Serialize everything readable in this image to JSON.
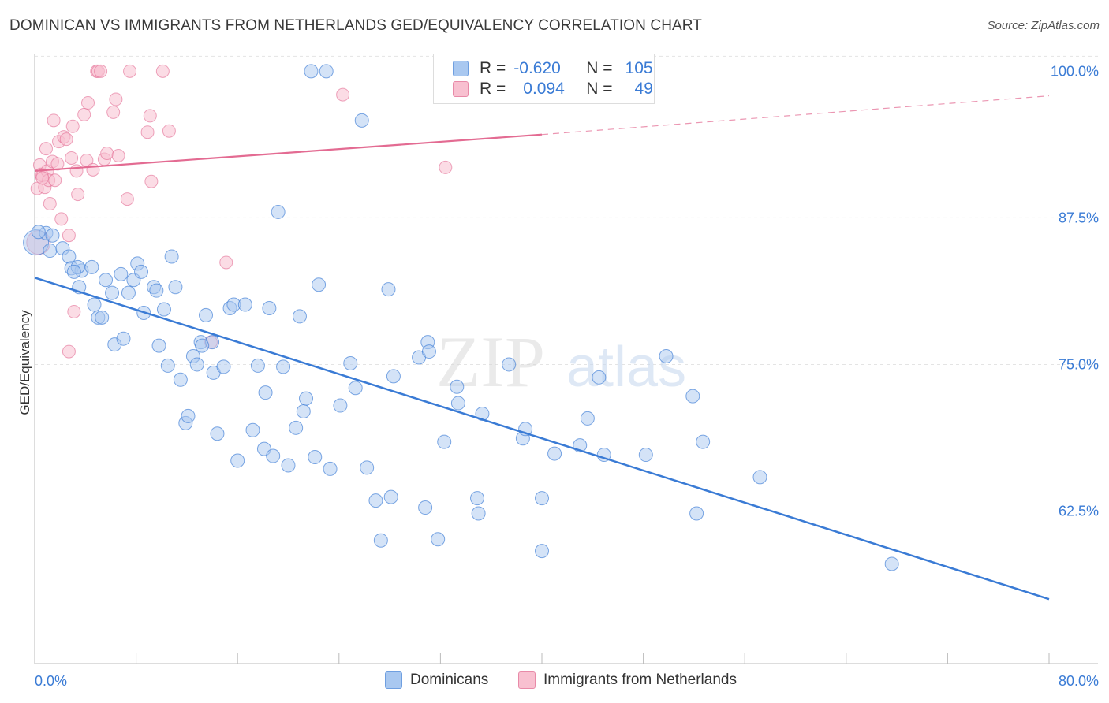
{
  "title": "DOMINICAN VS IMMIGRANTS FROM NETHERLANDS GED/EQUIVALENCY CORRELATION CHART",
  "source": "Source: ZipAtlas.com",
  "legend": {
    "r_label": "R =",
    "n_label": "N =",
    "rows": [
      {
        "r": "-0.620",
        "n": "105"
      },
      {
        "r": "0.094",
        "n": "49"
      }
    ]
  },
  "bottom_legend": [
    "Dominicans",
    "Immigrants from Netherlands"
  ],
  "watermark": {
    "zip": "ZIP",
    "atlas": "atlas"
  },
  "colors": {
    "blue": "#3a7bd5",
    "blue_fill": "#a9c8f0",
    "pink": "#e36b92",
    "pink_fill": "#f8c0d0"
  },
  "chart_data": {
    "type": "scatter",
    "title": "DOMINICAN VS IMMIGRANTS FROM NETHERLANDS GED/EQUIVALENCY CORRELATION CHART",
    "xlabel": "",
    "ylabel": "GED/Equivalency",
    "x_tick_labels": [
      "0.0%",
      "80.0%"
    ],
    "y_tick_labels": [
      "100.0%",
      "87.5%",
      "75.0%",
      "62.5%"
    ],
    "y_ticks": [
      100.0,
      87.5,
      75.0,
      62.5
    ],
    "xlim": [
      0,
      80
    ],
    "ylim": [
      49.5,
      101.5
    ],
    "grid": true,
    "series": [
      {
        "name": "Dominicans",
        "r": -0.62,
        "n": 105,
        "trend": {
          "x0": 0,
          "y0": 82.4,
          "x1": 80,
          "y1": 55.0
        },
        "points": [
          [
            0.1,
            85.4
          ],
          [
            0.9,
            86.2
          ],
          [
            1.2,
            84.7
          ],
          [
            1.4,
            86.0
          ],
          [
            2.2,
            84.9
          ],
          [
            2.7,
            84.2
          ],
          [
            2.9,
            83.2
          ],
          [
            3.7,
            83.0
          ],
          [
            3.4,
            83.3
          ],
          [
            3.5,
            81.6
          ],
          [
            4.5,
            83.3
          ],
          [
            4.7,
            80.1
          ],
          [
            5.0,
            79.0
          ],
          [
            5.3,
            79.0
          ],
          [
            5.6,
            82.2
          ],
          [
            6.1,
            81.1
          ],
          [
            6.3,
            76.7
          ],
          [
            6.8,
            82.7
          ],
          [
            7.0,
            77.2
          ],
          [
            7.4,
            81.1
          ],
          [
            7.8,
            82.2
          ],
          [
            8.1,
            83.6
          ],
          [
            8.4,
            82.9
          ],
          [
            8.6,
            79.4
          ],
          [
            9.4,
            81.6
          ],
          [
            9.6,
            81.3
          ],
          [
            9.8,
            76.6
          ],
          [
            10.2,
            79.7
          ],
          [
            10.5,
            74.9
          ],
          [
            10.8,
            84.2
          ],
          [
            11.1,
            81.6
          ],
          [
            11.5,
            73.7
          ],
          [
            11.9,
            70.0
          ],
          [
            12.1,
            70.6
          ],
          [
            12.5,
            75.7
          ],
          [
            12.8,
            75.0
          ],
          [
            13.1,
            76.9
          ],
          [
            13.5,
            79.2
          ],
          [
            14.0,
            76.9
          ],
          [
            14.1,
            74.3
          ],
          [
            14.4,
            69.1
          ],
          [
            14.9,
            74.8
          ],
          [
            15.4,
            79.8
          ],
          [
            15.7,
            80.1
          ],
          [
            16.0,
            66.8
          ],
          [
            16.6,
            80.1
          ],
          [
            17.2,
            69.4
          ],
          [
            17.6,
            74.9
          ],
          [
            18.1,
            67.8
          ],
          [
            18.2,
            72.6
          ],
          [
            18.5,
            79.8
          ],
          [
            18.8,
            67.2
          ],
          [
            19.2,
            88.0
          ],
          [
            19.6,
            74.8
          ],
          [
            20.0,
            66.4
          ],
          [
            20.6,
            69.6
          ],
          [
            20.9,
            79.1
          ],
          [
            21.2,
            71.0
          ],
          [
            21.4,
            72.1
          ],
          [
            21.8,
            100.0
          ],
          [
            22.1,
            67.1
          ],
          [
            22.4,
            81.8
          ],
          [
            23.0,
            100.0
          ],
          [
            23.3,
            66.1
          ],
          [
            24.1,
            71.5
          ],
          [
            24.9,
            75.1
          ],
          [
            25.3,
            73.0
          ],
          [
            25.8,
            95.8
          ],
          [
            26.2,
            66.2
          ],
          [
            26.9,
            63.4
          ],
          [
            27.3,
            60.0
          ],
          [
            27.9,
            81.4
          ],
          [
            28.1,
            63.7
          ],
          [
            28.3,
            74.0
          ],
          [
            30.3,
            75.6
          ],
          [
            30.8,
            62.8
          ],
          [
            31.0,
            76.9
          ],
          [
            31.1,
            76.1
          ],
          [
            31.8,
            60.1
          ],
          [
            32.3,
            68.4
          ],
          [
            33.3,
            73.1
          ],
          [
            33.4,
            71.7
          ],
          [
            34.9,
            63.6
          ],
          [
            35.0,
            62.3
          ],
          [
            35.3,
            70.8
          ],
          [
            37.4,
            75.0
          ],
          [
            38.5,
            68.7
          ],
          [
            38.7,
            69.5
          ],
          [
            40.0,
            63.6
          ],
          [
            40.0,
            59.1
          ],
          [
            41.0,
            67.4
          ],
          [
            43.0,
            68.1
          ],
          [
            43.6,
            70.4
          ],
          [
            44.5,
            73.9
          ],
          [
            44.9,
            67.3
          ],
          [
            48.2,
            67.3
          ],
          [
            49.8,
            75.7
          ],
          [
            51.9,
            72.3
          ],
          [
            52.2,
            62.3
          ],
          [
            52.7,
            68.4
          ],
          [
            57.2,
            65.4
          ],
          [
            67.6,
            58.0
          ],
          [
            0.3,
            86.3
          ],
          [
            3.1,
            82.9
          ],
          [
            13.2,
            76.6
          ]
        ]
      },
      {
        "name": "Immigrants from Netherlands",
        "r": 0.094,
        "n": 49,
        "trend": {
          "x0": 0,
          "y0": 91.5,
          "x1": 40,
          "y1": 94.6,
          "x_dash_end": 80,
          "y_dash_end": 97.9
        },
        "points": [
          [
            0.2,
            90.0
          ],
          [
            0.4,
            92.0
          ],
          [
            0.5,
            91.2
          ],
          [
            0.6,
            91.1
          ],
          [
            0.8,
            90.1
          ],
          [
            0.9,
            93.4
          ],
          [
            1.0,
            91.5
          ],
          [
            1.1,
            90.7
          ],
          [
            1.2,
            88.7
          ],
          [
            1.4,
            92.3
          ],
          [
            1.5,
            95.8
          ],
          [
            1.6,
            90.7
          ],
          [
            1.8,
            92.1
          ],
          [
            1.9,
            94.0
          ],
          [
            2.1,
            87.4
          ],
          [
            2.3,
            94.4
          ],
          [
            2.5,
            94.2
          ],
          [
            2.7,
            86.0
          ],
          [
            2.9,
            92.6
          ],
          [
            3.0,
            95.3
          ],
          [
            3.1,
            79.5
          ],
          [
            3.3,
            91.5
          ],
          [
            3.4,
            89.5
          ],
          [
            3.9,
            96.3
          ],
          [
            4.1,
            92.4
          ],
          [
            4.2,
            97.3
          ],
          [
            4.6,
            91.6
          ],
          [
            4.9,
            100.0
          ],
          [
            5.0,
            100.0
          ],
          [
            5.2,
            100.0
          ],
          [
            5.5,
            92.5
          ],
          [
            5.7,
            93.0
          ],
          [
            6.2,
            96.5
          ],
          [
            6.4,
            97.6
          ],
          [
            6.6,
            92.8
          ],
          [
            7.3,
            89.1
          ],
          [
            7.5,
            100.0
          ],
          [
            8.9,
            94.8
          ],
          [
            9.1,
            96.2
          ],
          [
            9.2,
            90.6
          ],
          [
            10.1,
            100.0
          ],
          [
            10.6,
            94.9
          ],
          [
            13.9,
            76.9
          ],
          [
            15.1,
            83.7
          ],
          [
            24.3,
            98.0
          ],
          [
            32.4,
            91.8
          ],
          [
            2.7,
            76.1
          ],
          [
            0.3,
            85.4
          ],
          [
            0.6,
            90.9
          ]
        ]
      }
    ]
  }
}
